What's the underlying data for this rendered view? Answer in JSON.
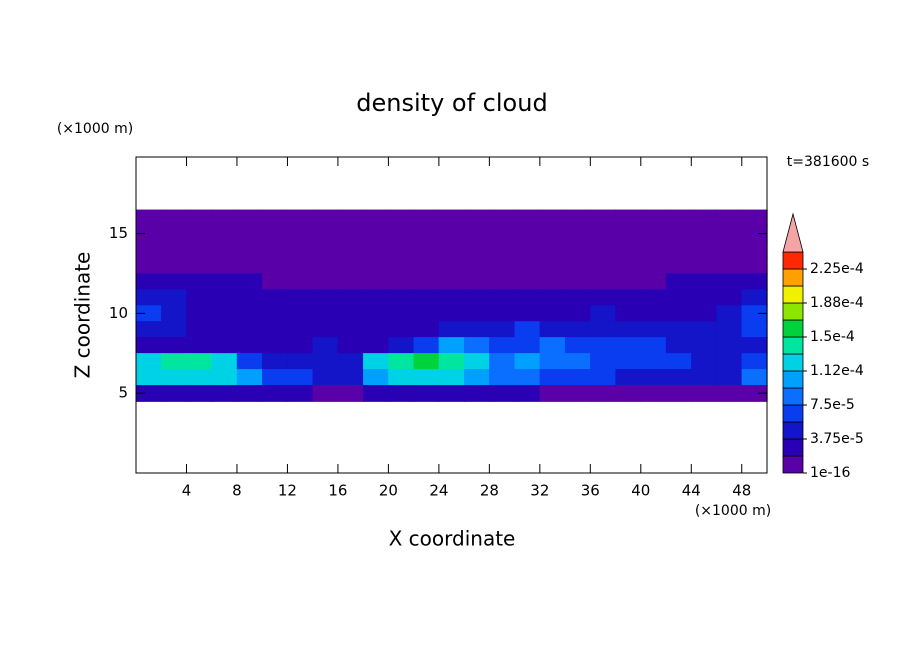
{
  "chart_data": {
    "type": "contour",
    "title": "density of cloud",
    "x_label": "X coordinate",
    "y_label": "Z coordinate",
    "x_unit": "(×1000 m)",
    "y_unit": "(×1000 m)",
    "time_label": "t=381600 s",
    "xlim": [
      0,
      50
    ],
    "ylim": [
      0,
      19.8
    ],
    "xticks": [
      4,
      8,
      12,
      16,
      20,
      24,
      28,
      32,
      36,
      40,
      44,
      48
    ],
    "yticks": [
      5,
      10,
      15
    ],
    "x": [
      1,
      3,
      5,
      7,
      9,
      11,
      13,
      15,
      17,
      19,
      21,
      23,
      25,
      27,
      29,
      31,
      33,
      35,
      37,
      39,
      41,
      43,
      45,
      47,
      49
    ],
    "y": [
      16,
      15,
      14,
      13,
      12,
      11,
      10,
      9,
      8,
      7,
      6,
      5
    ],
    "levels": [
      1e-16,
      1.875e-05,
      3.75e-05,
      5.625e-05,
      7.5e-05,
      9.375e-05,
      0.0001125,
      0.00013125,
      0.00015,
      0.00016875,
      0.0001875,
      0.00020625,
      0.000225,
      0.00024375
    ],
    "colors": [
      "#5a00a8",
      "#2a00b4",
      "#1414c8",
      "#0a3cf0",
      "#0a6eff",
      "#00a0ff",
      "#00d2e6",
      "#00e6a0",
      "#00d23c",
      "#8ce600",
      "#f0f000",
      "#ffa000",
      "#ff2800"
    ],
    "over_color": "#f4a4a4",
    "cbar_ticks": [
      {
        "value": 1e-16,
        "label": "1e-16"
      },
      {
        "value": 3.75e-05,
        "label": "3.75e-5"
      },
      {
        "value": 7.5e-05,
        "label": "7.5e-5"
      },
      {
        "value": 0.0001125,
        "label": "1.12e-4"
      },
      {
        "value": 0.00015,
        "label": "1.5e-4"
      },
      {
        "value": 0.0001875,
        "label": "1.88e-4"
      },
      {
        "value": 0.000225,
        "label": "2.25e-4"
      }
    ],
    "z": [
      [
        5e-06,
        5e-06,
        5e-06,
        5e-06,
        5e-06,
        5e-06,
        5e-06,
        5e-06,
        5e-06,
        5e-06,
        5e-06,
        5e-06,
        5e-06,
        5e-06,
        5e-06,
        5e-06,
        5e-06,
        5e-06,
        5e-06,
        5e-06,
        5e-06,
        5e-06,
        5e-06,
        5e-06,
        5e-06
      ],
      [
        5e-06,
        5e-06,
        5e-06,
        5e-06,
        5e-06,
        5e-06,
        5e-06,
        5e-06,
        5e-06,
        5e-06,
        5e-06,
        5e-06,
        5e-06,
        5e-06,
        5e-06,
        5e-06,
        5e-06,
        5e-06,
        5e-06,
        5e-06,
        5e-06,
        5e-06,
        5e-06,
        5e-06,
        5e-06
      ],
      [
        5e-06,
        5e-06,
        5e-06,
        5e-06,
        5e-06,
        5e-06,
        5e-06,
        5e-06,
        5e-06,
        5e-06,
        5e-06,
        5e-06,
        5e-06,
        5e-06,
        5e-06,
        5e-06,
        5e-06,
        5e-06,
        5e-06,
        5e-06,
        5e-06,
        5e-06,
        5e-06,
        5e-06,
        5e-06
      ],
      [
        5e-06,
        5e-06,
        5e-06,
        5e-06,
        5e-06,
        5e-06,
        5e-06,
        5e-06,
        5e-06,
        5e-06,
        5e-06,
        5e-06,
        5e-06,
        5e-06,
        5e-06,
        5e-06,
        5e-06,
        5e-06,
        5e-06,
        5e-06,
        5e-06,
        5e-06,
        5e-06,
        5e-06,
        5e-06
      ],
      [
        2.5e-05,
        2.5e-05,
        2.5e-05,
        2.5e-05,
        2.5e-05,
        5e-06,
        5e-06,
        5e-06,
        5e-06,
        5e-06,
        5e-06,
        5e-06,
        5e-06,
        5e-06,
        5e-06,
        5e-06,
        5e-06,
        5e-06,
        5e-06,
        5e-06,
        5e-06,
        2.5e-05,
        2.5e-05,
        2.5e-05,
        2.5e-05
      ],
      [
        4.5e-05,
        4.5e-05,
        2.5e-05,
        2.5e-05,
        2.5e-05,
        2.5e-05,
        2.5e-05,
        2.5e-05,
        2.5e-05,
        2.5e-05,
        2.5e-05,
        2.5e-05,
        2.5e-05,
        2.5e-05,
        2.5e-05,
        2.5e-05,
        2.5e-05,
        2.5e-05,
        2.5e-05,
        2.5e-05,
        2.5e-05,
        2.5e-05,
        2.5e-05,
        2.5e-05,
        4.5e-05
      ],
      [
        6.5e-05,
        4.5e-05,
        2.5e-05,
        2.5e-05,
        2.5e-05,
        2.5e-05,
        2.5e-05,
        2.5e-05,
        2.5e-05,
        2.5e-05,
        2.5e-05,
        2.5e-05,
        2.5e-05,
        2.5e-05,
        2.5e-05,
        2.5e-05,
        2.5e-05,
        2.5e-05,
        4.5e-05,
        2.5e-05,
        2.5e-05,
        2.5e-05,
        2.5e-05,
        4.5e-05,
        6.5e-05
      ],
      [
        4.5e-05,
        4.5e-05,
        2.5e-05,
        2.5e-05,
        2.5e-05,
        2.5e-05,
        2.5e-05,
        2.5e-05,
        2.5e-05,
        2.5e-05,
        2.5e-05,
        2.5e-05,
        4.5e-05,
        4.5e-05,
        4.5e-05,
        6.5e-05,
        4.5e-05,
        4.5e-05,
        4.5e-05,
        4.5e-05,
        4.5e-05,
        4.5e-05,
        4.5e-05,
        4.5e-05,
        6.5e-05
      ],
      [
        2.5e-05,
        2.5e-05,
        2.5e-05,
        2.5e-05,
        2.5e-05,
        2.5e-05,
        2.5e-05,
        4.5e-05,
        2.5e-05,
        2.5e-05,
        4.5e-05,
        6.5e-05,
        0.0001,
        8.5e-05,
        6.5e-05,
        6.5e-05,
        8.5e-05,
        6.5e-05,
        6.5e-05,
        6.5e-05,
        6.5e-05,
        4.5e-05,
        4.5e-05,
        4.5e-05,
        4.5e-05
      ],
      [
        0.00012,
        0.00014,
        0.00014,
        0.00012,
        6.5e-05,
        4.5e-05,
        4.5e-05,
        4.5e-05,
        4.5e-05,
        0.00012,
        0.00014,
        0.00016,
        0.00014,
        0.00012,
        8.5e-05,
        0.0001,
        8.5e-05,
        8.5e-05,
        6.5e-05,
        6.5e-05,
        6.5e-05,
        6.5e-05,
        4.5e-05,
        4.5e-05,
        6.5e-05
      ],
      [
        0.00012,
        0.00012,
        0.00012,
        0.00012,
        0.0001,
        6.5e-05,
        6.5e-05,
        4.5e-05,
        4.5e-05,
        0.0001,
        0.00012,
        0.00012,
        0.00012,
        0.0001,
        8.5e-05,
        8.5e-05,
        6.5e-05,
        6.5e-05,
        6.5e-05,
        4.5e-05,
        4.5e-05,
        4.5e-05,
        4.5e-05,
        4.5e-05,
        8.5e-05
      ],
      [
        2.5e-05,
        2.5e-05,
        2.5e-05,
        2.5e-05,
        2.5e-05,
        2.5e-05,
        2.5e-05,
        5e-06,
        5e-06,
        2.5e-05,
        2.5e-05,
        2.5e-05,
        2.5e-05,
        2.5e-05,
        2.5e-05,
        2.5e-05,
        5e-06,
        5e-06,
        5e-06,
        5e-06,
        5e-06,
        5e-06,
        5e-06,
        5e-06,
        5e-06
      ]
    ]
  }
}
